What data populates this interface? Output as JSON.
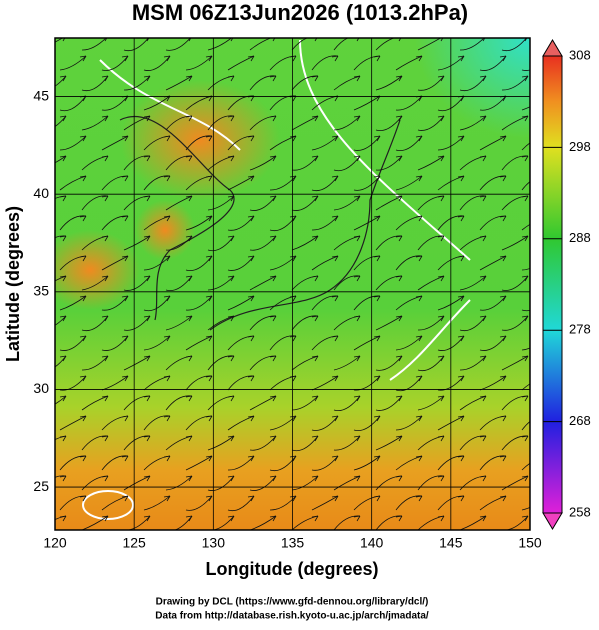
{
  "chart_data": {
    "type": "map",
    "title": "MSM 06Z13Jun2026 (1013.2hPa)",
    "xlabel": "Longitude (degrees)",
    "ylabel": "Latitude  (degrees)",
    "xlim": [
      120,
      150
    ],
    "xticks": [
      120,
      125,
      130,
      135,
      140,
      145,
      150
    ],
    "ylim": [
      22.8,
      48
    ],
    "yticks": [
      25,
      30,
      35,
      40,
      45
    ],
    "grid": true,
    "colorbar": {
      "lim": [
        258,
        308
      ],
      "ticks": [
        258,
        268,
        278,
        288,
        298,
        308
      ]
    }
  },
  "credits": [
    "Drawing by DCL (https://www.gfd-dennou.org/library/dcl/)",
    "Data from http://database.rish.kyoto-u.ac.jp/arch/jmadata/"
  ]
}
